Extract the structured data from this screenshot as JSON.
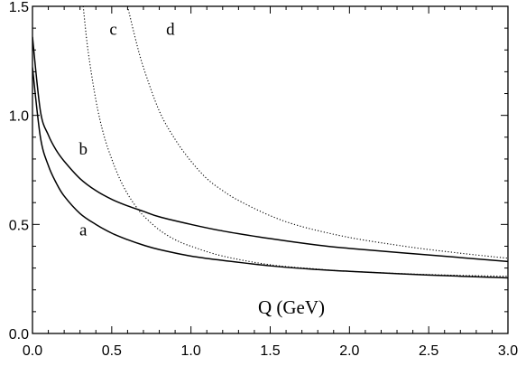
{
  "chart_data": {
    "type": "line",
    "title": "",
    "xlabel": "Q (GeV)",
    "ylabel": "",
    "xlim": [
      0.0,
      3.0
    ],
    "ylim": [
      0.0,
      1.5
    ],
    "grid": false,
    "legend": "none",
    "x_ticks": [
      0.0,
      0.5,
      1.0,
      1.5,
      2.0,
      2.5,
      3.0
    ],
    "x_tick_labels": [
      "0.0",
      "0.5",
      "1.0",
      "1.5",
      "2.0",
      "2.5",
      "3.0"
    ],
    "y_ticks": [
      0.0,
      0.5,
      1.0,
      1.5
    ],
    "y_tick_labels": [
      "0.0",
      "0.5",
      "1.0",
      "1.5"
    ],
    "series": [
      {
        "name": "a",
        "style": "solid",
        "color": "#000000",
        "label_at": [
          0.32,
          0.45
        ],
        "x": [
          0.0,
          0.05,
          0.1,
          0.15,
          0.2,
          0.3,
          0.4,
          0.5,
          0.6,
          0.7,
          0.8,
          1.0,
          1.2,
          1.5,
          1.8,
          2.0,
          2.5,
          3.0
        ],
        "y": [
          1.22,
          0.9,
          0.77,
          0.69,
          0.63,
          0.55,
          0.5,
          0.46,
          0.43,
          0.405,
          0.385,
          0.355,
          0.335,
          0.31,
          0.293,
          0.285,
          0.268,
          0.255
        ]
      },
      {
        "name": "b",
        "style": "solid",
        "color": "#000000",
        "label_at": [
          0.32,
          0.82
        ],
        "x": [
          0.0,
          0.05,
          0.1,
          0.15,
          0.2,
          0.3,
          0.4,
          0.5,
          0.6,
          0.7,
          0.8,
          1.0,
          1.2,
          1.5,
          1.8,
          2.0,
          2.5,
          3.0
        ],
        "y": [
          1.36,
          1.02,
          0.91,
          0.84,
          0.79,
          0.71,
          0.655,
          0.615,
          0.585,
          0.56,
          0.535,
          0.5,
          0.47,
          0.435,
          0.405,
          0.39,
          0.36,
          0.33
        ]
      },
      {
        "name": "c",
        "style": "dotted",
        "color": "#000000",
        "label_at": [
          0.51,
          1.37
        ],
        "x": [
          0.32,
          0.35,
          0.4,
          0.45,
          0.5,
          0.55,
          0.6,
          0.65,
          0.7,
          0.8,
          0.9,
          1.0,
          1.2,
          1.5,
          1.8,
          2.0,
          2.5,
          3.0
        ],
        "y": [
          1.5,
          1.3,
          1.07,
          0.91,
          0.8,
          0.71,
          0.64,
          0.585,
          0.54,
          0.475,
          0.43,
          0.4,
          0.355,
          0.315,
          0.295,
          0.285,
          0.27,
          0.262
        ]
      },
      {
        "name": "d",
        "style": "dotted",
        "color": "#000000",
        "label_at": [
          0.87,
          1.37
        ],
        "x": [
          0.6,
          0.65,
          0.7,
          0.8,
          0.9,
          1.0,
          1.1,
          1.2,
          1.3,
          1.5,
          1.7,
          2.0,
          2.3,
          2.5,
          2.8,
          3.0
        ],
        "y": [
          1.5,
          1.35,
          1.22,
          1.02,
          0.89,
          0.79,
          0.71,
          0.655,
          0.61,
          0.54,
          0.49,
          0.44,
          0.405,
          0.385,
          0.36,
          0.345
        ]
      }
    ]
  }
}
